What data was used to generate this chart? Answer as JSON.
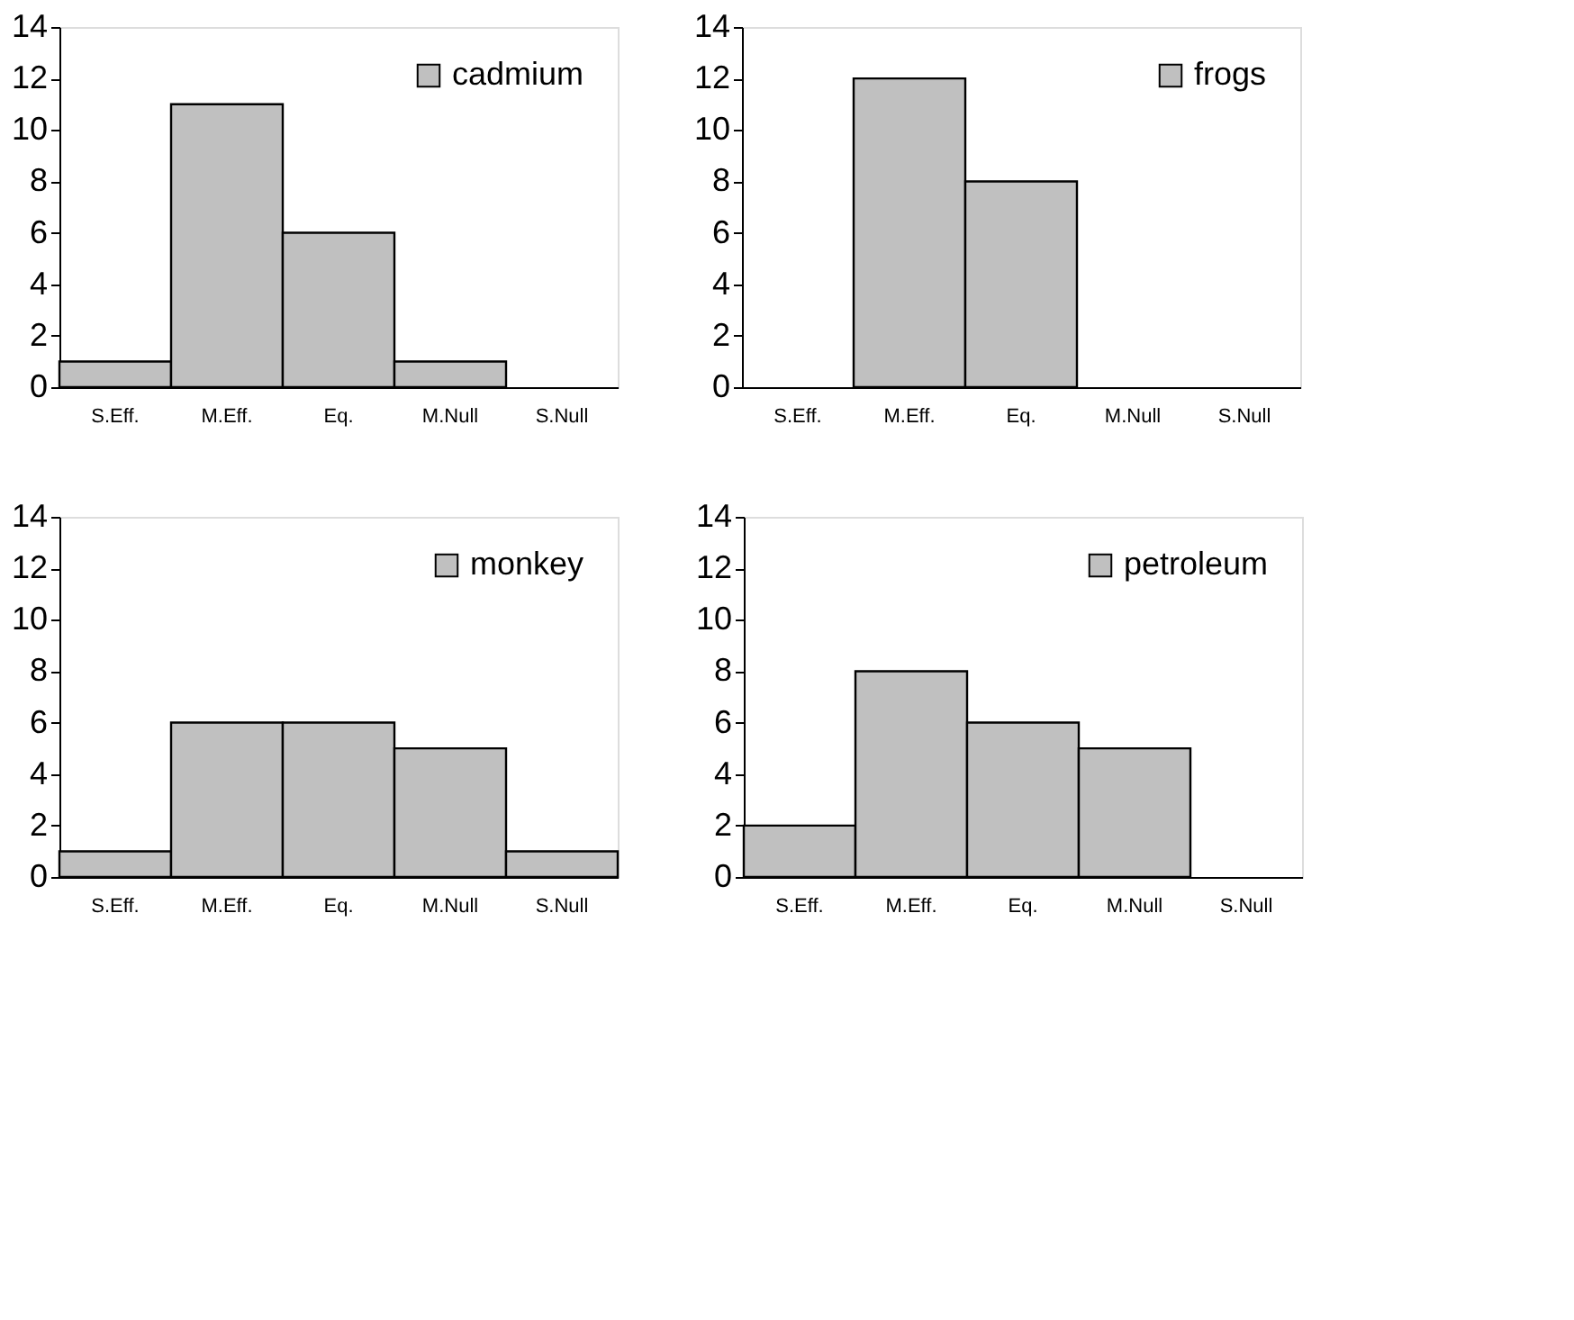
{
  "chart_data": [
    {
      "type": "bar",
      "categories": [
        "S.Eff.",
        "M.Eff.",
        "Eq.",
        "M.Null",
        "S.Null"
      ],
      "series": [
        {
          "name": "cadmium",
          "color": "#c0c0c0",
          "values": [
            1,
            11,
            6,
            1,
            0
          ]
        }
      ],
      "ylim": [
        0,
        14
      ],
      "yticks": [
        0,
        2,
        4,
        6,
        8,
        10,
        12,
        14
      ],
      "grid": false,
      "legend": "top right"
    },
    {
      "type": "bar",
      "categories": [
        "S.Eff.",
        "M.Eff.",
        "Eq.",
        "M.Null",
        "S.Null"
      ],
      "series": [
        {
          "name": "frogs",
          "color": "#c0c0c0",
          "values": [
            0,
            12,
            8,
            0,
            0
          ]
        }
      ],
      "ylim": [
        0,
        14
      ],
      "yticks": [
        0,
        2,
        4,
        6,
        8,
        10,
        12,
        14
      ],
      "grid": false,
      "legend": "top right"
    },
    {
      "type": "bar",
      "categories": [
        "S.Eff.",
        "M.Eff.",
        "Eq.",
        "M.Null",
        "S.Null"
      ],
      "series": [
        {
          "name": "monkey",
          "color": "#c0c0c0",
          "values": [
            1,
            6,
            6,
            5,
            1
          ]
        }
      ],
      "ylim": [
        0,
        14
      ],
      "yticks": [
        0,
        2,
        4,
        6,
        8,
        10,
        12,
        14
      ],
      "grid": false,
      "legend": "top right"
    },
    {
      "type": "bar",
      "categories": [
        "S.Eff.",
        "M.Eff.",
        "Eq.",
        "M.Null",
        "S.Null"
      ],
      "series": [
        {
          "name": "petroleum",
          "color": "#c0c0c0",
          "values": [
            2,
            8,
            6,
            5,
            0
          ]
        }
      ],
      "ylim": [
        0,
        14
      ],
      "yticks": [
        0,
        2,
        4,
        6,
        8,
        10,
        12,
        14
      ],
      "grid": false,
      "legend": "top right"
    }
  ]
}
